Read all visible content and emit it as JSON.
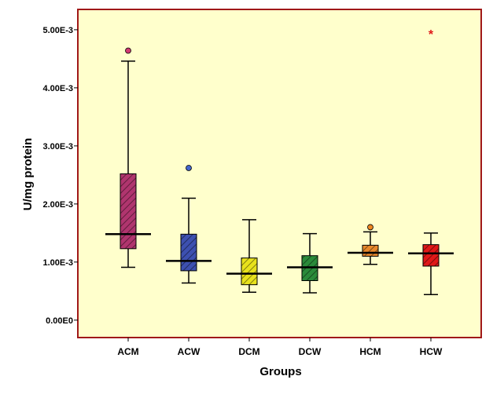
{
  "chart_data": {
    "type": "boxplot",
    "title": "",
    "xlabel": "Groups",
    "ylabel": "U/mg protein",
    "ylim": [
      -0.0003,
      0.00535
    ],
    "yticks": [
      {
        "value": 0.0,
        "label": "0.00E0"
      },
      {
        "value": 0.001,
        "label": "1.00E-3"
      },
      {
        "value": 0.002,
        "label": "2.00E-3"
      },
      {
        "value": 0.003,
        "label": "3.00E-3"
      },
      {
        "value": 0.004,
        "label": "4.00E-3"
      },
      {
        "value": 0.005,
        "label": "5.00E-3"
      }
    ],
    "categories": [
      "ACM",
      "ACW",
      "DCM",
      "DCW",
      "HCM",
      "HCW"
    ],
    "boxes": [
      {
        "name": "ACM",
        "min": 0.00091,
        "q1": 0.00123,
        "median": 0.00148,
        "q3": 0.00252,
        "max": 0.00446,
        "color": "#b0356e",
        "outliers": [
          {
            "value": 0.00464,
            "marker": "circle",
            "color": "#d23a72"
          }
        ]
      },
      {
        "name": "ACW",
        "min": 0.00064,
        "q1": 0.00085,
        "median": 0.00102,
        "q3": 0.00148,
        "max": 0.0021,
        "color": "#3d50b0",
        "outliers": [
          {
            "value": 0.00262,
            "marker": "circle",
            "color": "#4466cc"
          }
        ]
      },
      {
        "name": "DCM",
        "min": 0.00048,
        "q1": 0.00061,
        "median": 0.0008,
        "q3": 0.00107,
        "max": 0.00173,
        "color": "#e8e21c",
        "outliers": []
      },
      {
        "name": "DCW",
        "min": 0.00047,
        "q1": 0.00068,
        "median": 0.00091,
        "q3": 0.00111,
        "max": 0.00149,
        "color": "#2a8a3a",
        "outliers": []
      },
      {
        "name": "HCM",
        "min": 0.00096,
        "q1": 0.0011,
        "median": 0.00116,
        "q3": 0.00129,
        "max": 0.00152,
        "color": "#e8882c",
        "outliers": [
          {
            "value": 0.0016,
            "marker": "circle",
            "color": "#ee8822"
          }
        ]
      },
      {
        "name": "HCW",
        "min": 0.00044,
        "q1": 0.00093,
        "median": 0.00115,
        "q3": 0.0013,
        "max": 0.0015,
        "color": "#e01818",
        "outliers": [
          {
            "value": 0.00497,
            "marker": "asterisk",
            "color": "#e01818"
          }
        ]
      }
    ],
    "grid": false,
    "legend": "none"
  },
  "colors": {
    "plot_background": "#ffffcc",
    "frame": "#a01818",
    "axis": "#000000"
  }
}
